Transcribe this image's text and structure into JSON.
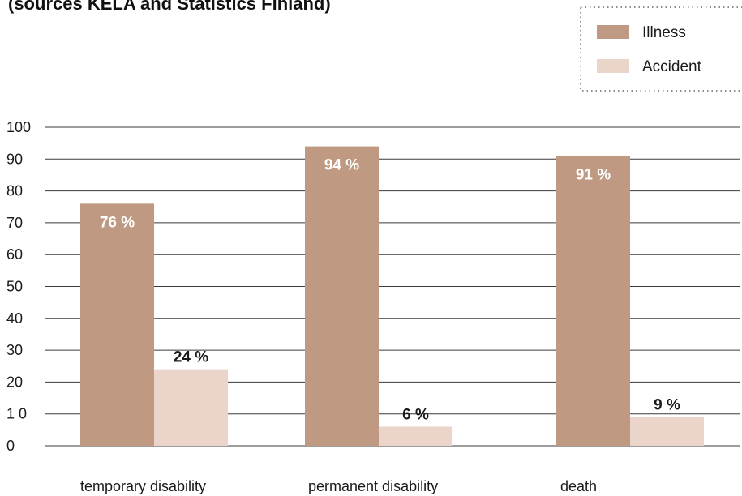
{
  "title": "(sources KELA and Statistics Finland)",
  "chart_data": {
    "type": "bar",
    "categories": [
      "temporary disability",
      "permanent disability",
      "death"
    ],
    "series": [
      {
        "name": "Illness",
        "values": [
          76,
          94,
          91
        ],
        "labels": [
          "76 %",
          "94 %",
          "91 %"
        ]
      },
      {
        "name": "Accident",
        "values": [
          24,
          6,
          9
        ],
        "labels": [
          "24 %",
          "6 %",
          "9 %"
        ]
      }
    ],
    "ylim": [
      0,
      100
    ],
    "yticks": [
      0,
      10,
      20,
      30,
      40,
      50,
      60,
      70,
      80,
      90,
      100
    ],
    "ytick_labels": [
      "0",
      "1 0",
      "20",
      "30",
      "40",
      "50",
      "60",
      "70",
      "80",
      "90",
      "100"
    ],
    "grid": true,
    "legend_position": "top-right",
    "colors": {
      "Illness": "#bf9982",
      "Accident": "#ebd5cb"
    }
  }
}
